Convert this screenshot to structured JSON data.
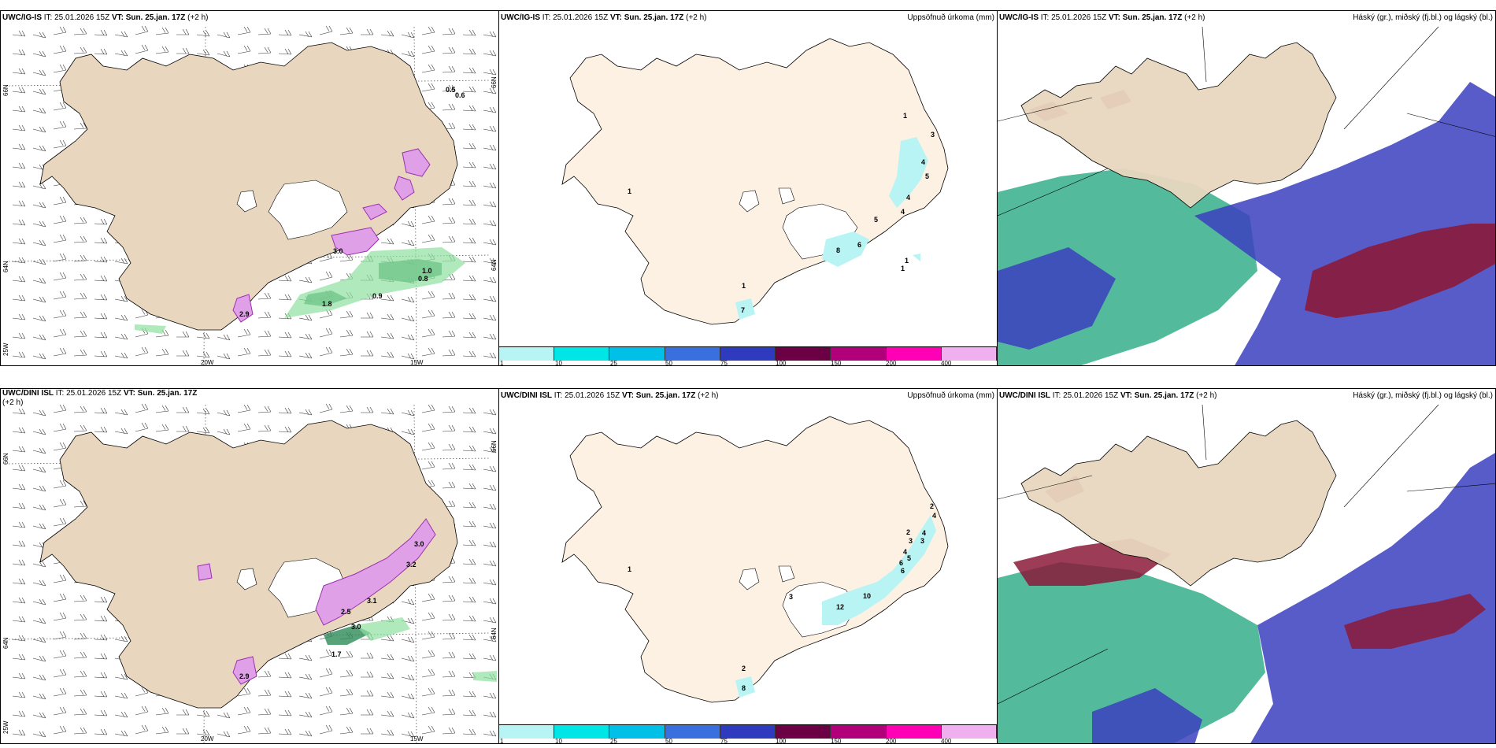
{
  "rows": [
    {
      "model": "UWC/IG-IS",
      "left": {
        "model": "UWC/IG-IS",
        "it_label": "IT: 25.01.2026 15Z",
        "vt_label": "VT: Sun. 25.jan. 17Z",
        "lead": "(+2 h)",
        "lat_labels": [
          "66N",
          "64N",
          "25W"
        ],
        "lat_right": [
          "66N",
          "64N"
        ],
        "lon_labels": [
          "20W",
          "15W"
        ],
        "value_labels": [
          "0.5",
          "0.6",
          "1.0",
          "0.8",
          "0.9",
          "1.8",
          "3.0",
          "2.9"
        ]
      },
      "middle": {
        "model": "UWC/IG-IS",
        "it_label": "IT: 25.01.2026 15Z",
        "vt_label": "VT: Sun. 25.jan. 17Z",
        "lead": "(+2 h)",
        "title_right": "Uppsöfnuð úrkoma (mm)",
        "precip_labels": [
          "1",
          "3",
          "4",
          "5",
          "4",
          "4",
          "5",
          "6",
          "8",
          "1",
          "1",
          "7",
          "1",
          "1"
        ]
      },
      "right": {
        "model": "UWC/IG-IS",
        "it_label": "IT: 25.01.2026 15Z",
        "vt_label": "VT: Sun. 25.jan. 17Z",
        "lead": "(+2 h)",
        "title_right": "Háský (gr.), miðský (fj.bl.) og lágský (bl.)"
      }
    },
    {
      "model": "UWC/DINI ISL",
      "left": {
        "model": "UWC/DINI ISL",
        "it_label": "IT: 25.01.2026 15Z",
        "vt_label": "VT: Sun. 25.jan. 17Z",
        "lead": "(+2 h)",
        "lat_labels": [
          "66N",
          "64N",
          "25W"
        ],
        "lat_right": [
          "66N",
          "64N"
        ],
        "lon_labels": [
          "20W",
          "15W"
        ],
        "value_labels": [
          "3.0",
          "2.5",
          "3.1",
          "1.7",
          "2.9",
          "3.2",
          "3.0"
        ]
      },
      "middle": {
        "model": "UWC/DINI ISL",
        "it_label": "IT: 25.01.2026 15Z",
        "vt_label": "VT: Sun. 25.jan. 17Z",
        "lead": "(+2 h)",
        "title_right": "Uppsöfnuð úrkoma (mm)",
        "precip_labels": [
          "2",
          "4",
          "4",
          "3",
          "3",
          "2",
          "4",
          "5",
          "6",
          "6",
          "10",
          "12",
          "3",
          "1",
          "2",
          "8"
        ]
      },
      "right": {
        "model": "UWC/DINI ISL",
        "it_label": "IT: 25.01.2026 15Z",
        "vt_label": "VT: Sun. 25.jan. 17Z",
        "lead": "(+2 h)",
        "title_right": "Háský (gr.), miðský (fj.bl.) og lágský (bl.)"
      }
    }
  ],
  "colorbar": {
    "ticks": [
      "1",
      "10",
      "25",
      "50",
      "75",
      "100",
      "150",
      "200",
      "400"
    ],
    "colors": [
      "#b8f4f4",
      "#00e5e5",
      "#00c0e8",
      "#3a6fe0",
      "#2f3bbf",
      "#6b0045",
      "#b0007a",
      "#ff00b4",
      "#f0b0f0"
    ]
  },
  "colors": {
    "land": "#e8d6bf",
    "land_light": "#fdf1e4",
    "snow": "#e0a0e8",
    "rain_green": "#2e8b57",
    "high_cloud": "#8b1a3a",
    "mid_cloud": "#3b3fbf",
    "low_cloud": "#1aa37a"
  }
}
